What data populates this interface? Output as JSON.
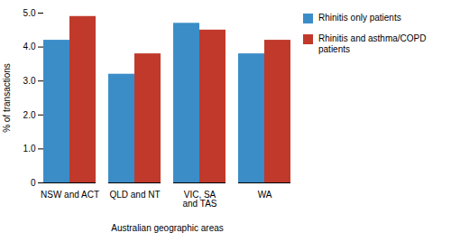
{
  "chart_data": {
    "type": "bar",
    "categories": [
      "NSW and ACT",
      "QLD and NT",
      "VIC, SA\nand TAS",
      "WA"
    ],
    "series": [
      {
        "name": "Rhinitis only patients",
        "color": "#3b8dc8",
        "values": [
          4.2,
          3.2,
          4.7,
          3.8
        ]
      },
      {
        "name": "Rhinitis and asthma/COPD\npatients",
        "color": "#c0392b",
        "values": [
          4.9,
          3.8,
          4.5,
          4.2
        ]
      }
    ],
    "xlabel": "Australian geographic areas",
    "ylabel": "% of transactions",
    "ylim": [
      0,
      5.0
    ],
    "yticks": [
      0,
      {
        "value": 1.0,
        "label": "1.0"
      },
      {
        "value": 2.0,
        "label": "2.0"
      },
      {
        "value": 3.0,
        "label": "3.0"
      },
      {
        "value": 4.0,
        "label": "4.0"
      },
      {
        "value": 5.0,
        "label": "5.0"
      }
    ],
    "grid": false,
    "legend": "right"
  }
}
